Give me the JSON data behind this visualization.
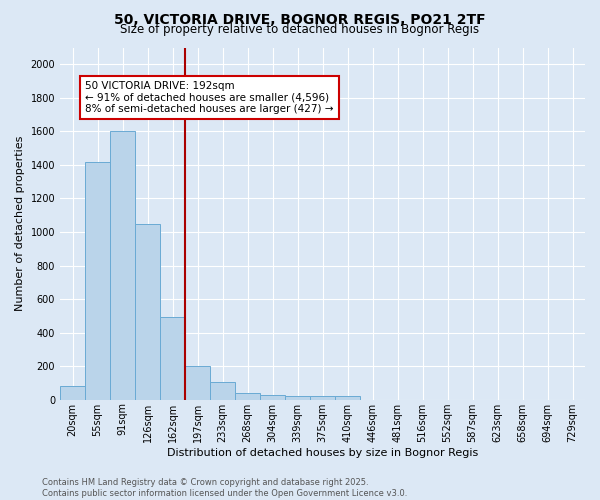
{
  "title1": "50, VICTORIA DRIVE, BOGNOR REGIS, PO21 2TF",
  "title2": "Size of property relative to detached houses in Bognor Regis",
  "xlabel": "Distribution of detached houses by size in Bognor Regis",
  "ylabel": "Number of detached properties",
  "categories": [
    "20sqm",
    "55sqm",
    "91sqm",
    "126sqm",
    "162sqm",
    "197sqm",
    "233sqm",
    "268sqm",
    "304sqm",
    "339sqm",
    "375sqm",
    "410sqm",
    "446sqm",
    "481sqm",
    "516sqm",
    "552sqm",
    "587sqm",
    "623sqm",
    "658sqm",
    "694sqm",
    "729sqm"
  ],
  "values": [
    80,
    1420,
    1600,
    1050,
    490,
    200,
    105,
    40,
    30,
    20,
    20,
    20,
    0,
    0,
    0,
    0,
    0,
    0,
    0,
    0,
    0
  ],
  "bar_color": "#bad4ea",
  "bar_edge_color": "#6aaad4",
  "vline_color": "#aa0000",
  "annotation_text": "50 VICTORIA DRIVE: 192sqm\n← 91% of detached houses are smaller (4,596)\n8% of semi-detached houses are larger (427) →",
  "annotation_box_color": "#ffffff",
  "annotation_box_edge": "#cc0000",
  "ylim": [
    0,
    2100
  ],
  "yticks": [
    0,
    200,
    400,
    600,
    800,
    1000,
    1200,
    1400,
    1600,
    1800,
    2000
  ],
  "background_color": "#dce8f5",
  "plot_bg_color": "#dce8f5",
  "footer_text": "Contains HM Land Registry data © Crown copyright and database right 2025.\nContains public sector information licensed under the Open Government Licence v3.0.",
  "title_fontsize": 10,
  "subtitle_fontsize": 8.5,
  "axis_label_fontsize": 8,
  "tick_fontsize": 7,
  "annotation_fontsize": 7.5
}
